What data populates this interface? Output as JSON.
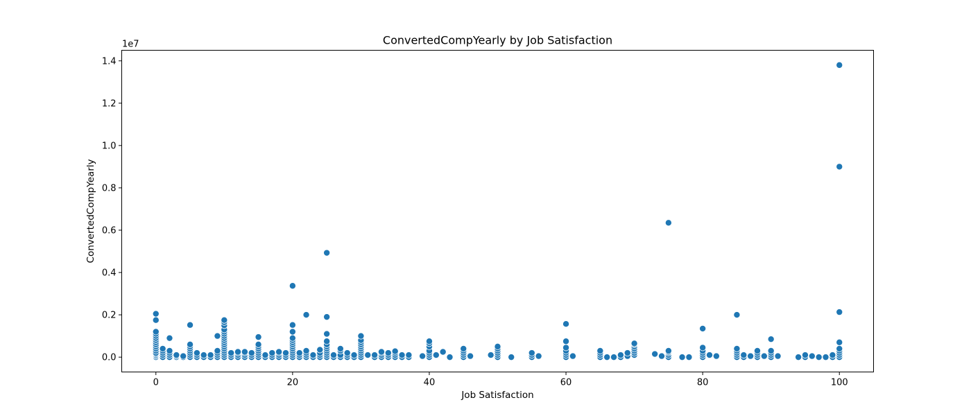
{
  "chart_data": {
    "type": "scatter",
    "title": "ConvertedCompYearly by Job Satisfaction",
    "xlabel": "Job Satisfaction",
    "ylabel": "ConvertedCompYearly",
    "offset_text": "1e7",
    "xlim": [
      -5,
      105
    ],
    "ylim": [
      -0.07,
      1.45
    ],
    "y_multiplier": 10000000,
    "xticks": [
      0,
      20,
      40,
      60,
      80,
      100
    ],
    "xtick_labels": [
      "0",
      "20",
      "40",
      "60",
      "80",
      "100"
    ],
    "yticks": [
      0.0,
      0.2,
      0.4,
      0.6,
      0.8,
      1.0,
      1.2,
      1.4
    ],
    "ytick_labels": [
      "0.0",
      "0.2",
      "0.4",
      "0.6",
      "0.8",
      "1.0",
      "1.2",
      "1.4"
    ],
    "grid": false,
    "marker_color": "#1f77b4",
    "points": [
      [
        0,
        0.0
      ],
      [
        0,
        0.005
      ],
      [
        0,
        0.01
      ],
      [
        0,
        0.015
      ],
      [
        0,
        0.02
      ],
      [
        0,
        0.03
      ],
      [
        0,
        0.04
      ],
      [
        0,
        0.05
      ],
      [
        0,
        0.06
      ],
      [
        0,
        0.07
      ],
      [
        0,
        0.08
      ],
      [
        0,
        0.09
      ],
      [
        0,
        0.1
      ],
      [
        0,
        0.11
      ],
      [
        0,
        0.12
      ],
      [
        0,
        0.175
      ],
      [
        0,
        0.205
      ],
      [
        1,
        0.0
      ],
      [
        1,
        0.01
      ],
      [
        1,
        0.02
      ],
      [
        1,
        0.03
      ],
      [
        1,
        0.04
      ],
      [
        2,
        0.0
      ],
      [
        2,
        0.01
      ],
      [
        2,
        0.02
      ],
      [
        2,
        0.03
      ],
      [
        2,
        0.09
      ],
      [
        3,
        0.0
      ],
      [
        3,
        0.005
      ],
      [
        3,
        0.01
      ],
      [
        4,
        0.0
      ],
      [
        4,
        0.005
      ],
      [
        5,
        0.0
      ],
      [
        5,
        0.01
      ],
      [
        5,
        0.02
      ],
      [
        5,
        0.03
      ],
      [
        5,
        0.04
      ],
      [
        5,
        0.05
      ],
      [
        5,
        0.06
      ],
      [
        5,
        0.152
      ],
      [
        6,
        0.0
      ],
      [
        6,
        0.01
      ],
      [
        6,
        0.02
      ],
      [
        7,
        0.0
      ],
      [
        7,
        0.01
      ],
      [
        8,
        0.0
      ],
      [
        8,
        0.01
      ],
      [
        9,
        0.0
      ],
      [
        9,
        0.01
      ],
      [
        9,
        0.02
      ],
      [
        9,
        0.03
      ],
      [
        9,
        0.1
      ],
      [
        10,
        0.0
      ],
      [
        10,
        0.01
      ],
      [
        10,
        0.02
      ],
      [
        10,
        0.03
      ],
      [
        10,
        0.04
      ],
      [
        10,
        0.05
      ],
      [
        10,
        0.06
      ],
      [
        10,
        0.07
      ],
      [
        10,
        0.08
      ],
      [
        10,
        0.09
      ],
      [
        10,
        0.1
      ],
      [
        10,
        0.11
      ],
      [
        10,
        0.12
      ],
      [
        10,
        0.13
      ],
      [
        10,
        0.15
      ],
      [
        10,
        0.165
      ],
      [
        10,
        0.175
      ],
      [
        11,
        0.0
      ],
      [
        11,
        0.01
      ],
      [
        11,
        0.02
      ],
      [
        12,
        0.0
      ],
      [
        12,
        0.01
      ],
      [
        12,
        0.02
      ],
      [
        12,
        0.025
      ],
      [
        13,
        0.0
      ],
      [
        13,
        0.01
      ],
      [
        13,
        0.02
      ],
      [
        13,
        0.025
      ],
      [
        14,
        0.0
      ],
      [
        14,
        0.01
      ],
      [
        14,
        0.02
      ],
      [
        15,
        0.0
      ],
      [
        15,
        0.01
      ],
      [
        15,
        0.02
      ],
      [
        15,
        0.03
      ],
      [
        15,
        0.04
      ],
      [
        15,
        0.05
      ],
      [
        15,
        0.06
      ],
      [
        15,
        0.095
      ],
      [
        16,
        0.0
      ],
      [
        16,
        0.01
      ],
      [
        17,
        0.0
      ],
      [
        17,
        0.01
      ],
      [
        17,
        0.02
      ],
      [
        18,
        0.0
      ],
      [
        18,
        0.01
      ],
      [
        18,
        0.02
      ],
      [
        18,
        0.025
      ],
      [
        19,
        0.0
      ],
      [
        19,
        0.01
      ],
      [
        19,
        0.02
      ],
      [
        20,
        0.0
      ],
      [
        20,
        0.01
      ],
      [
        20,
        0.02
      ],
      [
        20,
        0.03
      ],
      [
        20,
        0.04
      ],
      [
        20,
        0.05
      ],
      [
        20,
        0.06
      ],
      [
        20,
        0.07
      ],
      [
        20,
        0.08
      ],
      [
        20,
        0.09
      ],
      [
        20,
        0.12
      ],
      [
        20,
        0.152
      ],
      [
        20,
        0.337
      ],
      [
        21,
        0.0
      ],
      [
        21,
        0.01
      ],
      [
        21,
        0.02
      ],
      [
        22,
        0.0
      ],
      [
        22,
        0.01
      ],
      [
        22,
        0.02
      ],
      [
        22,
        0.03
      ],
      [
        22,
        0.2
      ],
      [
        23,
        0.0
      ],
      [
        23,
        0.01
      ],
      [
        24,
        0.0
      ],
      [
        24,
        0.01
      ],
      [
        24,
        0.02
      ],
      [
        24,
        0.035
      ],
      [
        25,
        0.0
      ],
      [
        25,
        0.01
      ],
      [
        25,
        0.02
      ],
      [
        25,
        0.03
      ],
      [
        25,
        0.04
      ],
      [
        25,
        0.05
      ],
      [
        25,
        0.06
      ],
      [
        25,
        0.075
      ],
      [
        25,
        0.11
      ],
      [
        25,
        0.19
      ],
      [
        25,
        0.493
      ],
      [
        26,
        0.0
      ],
      [
        26,
        0.01
      ],
      [
        27,
        0.0
      ],
      [
        27,
        0.01
      ],
      [
        27,
        0.03
      ],
      [
        27,
        0.04
      ],
      [
        28,
        0.0
      ],
      [
        28,
        0.01
      ],
      [
        28,
        0.02
      ],
      [
        29,
        0.0
      ],
      [
        29,
        0.01
      ],
      [
        30,
        0.0
      ],
      [
        30,
        0.01
      ],
      [
        30,
        0.02
      ],
      [
        30,
        0.03
      ],
      [
        30,
        0.04
      ],
      [
        30,
        0.05
      ],
      [
        30,
        0.06
      ],
      [
        30,
        0.07
      ],
      [
        30,
        0.08
      ],
      [
        30,
        0.1
      ],
      [
        31,
        0.01
      ],
      [
        32,
        0.0
      ],
      [
        32,
        0.01
      ],
      [
        33,
        0.0
      ],
      [
        33,
        0.01
      ],
      [
        33,
        0.02
      ],
      [
        33,
        0.025
      ],
      [
        34,
        0.0
      ],
      [
        34,
        0.01
      ],
      [
        34,
        0.02
      ],
      [
        35,
        0.0
      ],
      [
        35,
        0.01
      ],
      [
        35,
        0.02
      ],
      [
        35,
        0.028
      ],
      [
        36,
        0.0
      ],
      [
        36,
        0.01
      ],
      [
        37,
        0.0
      ],
      [
        37,
        0.01
      ],
      [
        39,
        0.005
      ],
      [
        40,
        0.0
      ],
      [
        40,
        0.01
      ],
      [
        40,
        0.02
      ],
      [
        40,
        0.03
      ],
      [
        40,
        0.05
      ],
      [
        40,
        0.065
      ],
      [
        40,
        0.075
      ],
      [
        41,
        0.01
      ],
      [
        42,
        0.025
      ],
      [
        43,
        0.0
      ],
      [
        45,
        0.0
      ],
      [
        45,
        0.01
      ],
      [
        45,
        0.02
      ],
      [
        45,
        0.03
      ],
      [
        45,
        0.04
      ],
      [
        46,
        0.005
      ],
      [
        49,
        0.01
      ],
      [
        50,
        0.0
      ],
      [
        50,
        0.01
      ],
      [
        50,
        0.02
      ],
      [
        50,
        0.03
      ],
      [
        50,
        0.04
      ],
      [
        50,
        0.05
      ],
      [
        52,
        0.0
      ],
      [
        55,
        0.0
      ],
      [
        55,
        0.01
      ],
      [
        55,
        0.02
      ],
      [
        56,
        0.005
      ],
      [
        60,
        0.0
      ],
      [
        60,
        0.01
      ],
      [
        60,
        0.02
      ],
      [
        60,
        0.03
      ],
      [
        60,
        0.045
      ],
      [
        60,
        0.075
      ],
      [
        60,
        0.157
      ],
      [
        61,
        0.005
      ],
      [
        65,
        0.0
      ],
      [
        65,
        0.01
      ],
      [
        65,
        0.02
      ],
      [
        65,
        0.03
      ],
      [
        66,
        0.0
      ],
      [
        67,
        0.0
      ],
      [
        68,
        0.0
      ],
      [
        68,
        0.01
      ],
      [
        69,
        0.005
      ],
      [
        69,
        0.02
      ],
      [
        70,
        0.01
      ],
      [
        70,
        0.02
      ],
      [
        70,
        0.03
      ],
      [
        70,
        0.04
      ],
      [
        70,
        0.05
      ],
      [
        70,
        0.06
      ],
      [
        70,
        0.065
      ],
      [
        73,
        0.015
      ],
      [
        74,
        0.005
      ],
      [
        75,
        0.0
      ],
      [
        75,
        0.01
      ],
      [
        75,
        0.02
      ],
      [
        75,
        0.025
      ],
      [
        75,
        0.03
      ],
      [
        75,
        0.635
      ],
      [
        77,
        0.0
      ],
      [
        78,
        0.0
      ],
      [
        80,
        0.0
      ],
      [
        80,
        0.01
      ],
      [
        80,
        0.02
      ],
      [
        80,
        0.03
      ],
      [
        80,
        0.045
      ],
      [
        80,
        0.135
      ],
      [
        81,
        0.01
      ],
      [
        82,
        0.005
      ],
      [
        85,
        0.0
      ],
      [
        85,
        0.01
      ],
      [
        85,
        0.02
      ],
      [
        85,
        0.03
      ],
      [
        85,
        0.04
      ],
      [
        85,
        0.2
      ],
      [
        86,
        0.0
      ],
      [
        86,
        0.01
      ],
      [
        87,
        0.005
      ],
      [
        88,
        0.0
      ],
      [
        88,
        0.01
      ],
      [
        88,
        0.02
      ],
      [
        88,
        0.03
      ],
      [
        89,
        0.005
      ],
      [
        90,
        0.0
      ],
      [
        90,
        0.01
      ],
      [
        90,
        0.02
      ],
      [
        90,
        0.03
      ],
      [
        90,
        0.085
      ],
      [
        91,
        0.005
      ],
      [
        94,
        0.0
      ],
      [
        95,
        0.0
      ],
      [
        95,
        0.01
      ],
      [
        96,
        0.005
      ],
      [
        97,
        0.0
      ],
      [
        98,
        0.0
      ],
      [
        99,
        0.0
      ],
      [
        99,
        0.01
      ],
      [
        100,
        0.0
      ],
      [
        100,
        0.01
      ],
      [
        100,
        0.02
      ],
      [
        100,
        0.03
      ],
      [
        100,
        0.04
      ],
      [
        100,
        0.07
      ],
      [
        100,
        0.213
      ],
      [
        100,
        0.9
      ],
      [
        100,
        1.38
      ]
    ]
  }
}
